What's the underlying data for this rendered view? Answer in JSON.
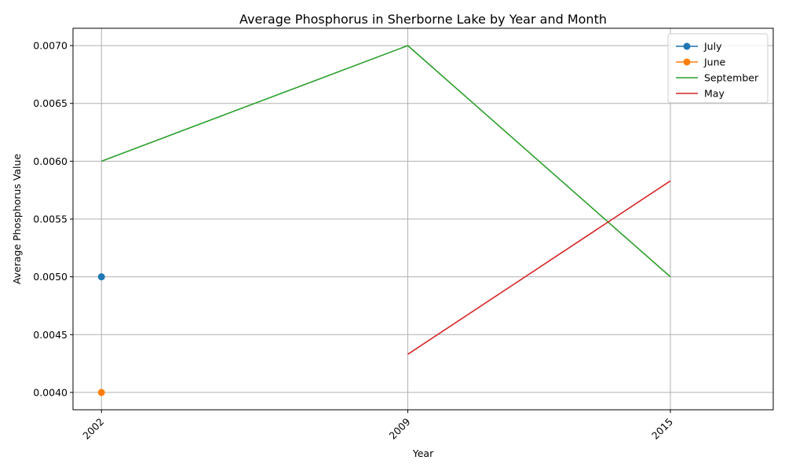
{
  "chart_data": {
    "type": "line",
    "title": "Average Phosphorus in Sherborne Lake by Year and Month",
    "xlabel": "Year",
    "ylabel": "Average Phosphorus Value",
    "x_ticks": [
      "2002",
      "2009",
      "2015"
    ],
    "y_ticks": [
      "0.0040",
      "0.0045",
      "0.0050",
      "0.0055",
      "0.0060",
      "0.0065",
      "0.0070"
    ],
    "xlim": [
      2001.35,
      2017.35
    ],
    "ylim": [
      0.00385,
      0.00715
    ],
    "grid": true,
    "legend_position": "top-right",
    "series": [
      {
        "name": "July",
        "color": "#1f77b4",
        "markers": true,
        "x": [
          2002
        ],
        "y": [
          0.005
        ]
      },
      {
        "name": "June",
        "color": "#ff7f0e",
        "markers": true,
        "x": [
          2002
        ],
        "y": [
          0.004
        ]
      },
      {
        "name": "September",
        "color": "#2ca02c",
        "markers": false,
        "x": [
          2002,
          2009,
          2015
        ],
        "y": [
          0.006,
          0.007,
          0.005
        ]
      },
      {
        "name": "May",
        "color": "#d62728",
        "markers": false,
        "x": [
          2009,
          2015
        ],
        "y": [
          0.00433,
          0.00583
        ]
      }
    ]
  }
}
